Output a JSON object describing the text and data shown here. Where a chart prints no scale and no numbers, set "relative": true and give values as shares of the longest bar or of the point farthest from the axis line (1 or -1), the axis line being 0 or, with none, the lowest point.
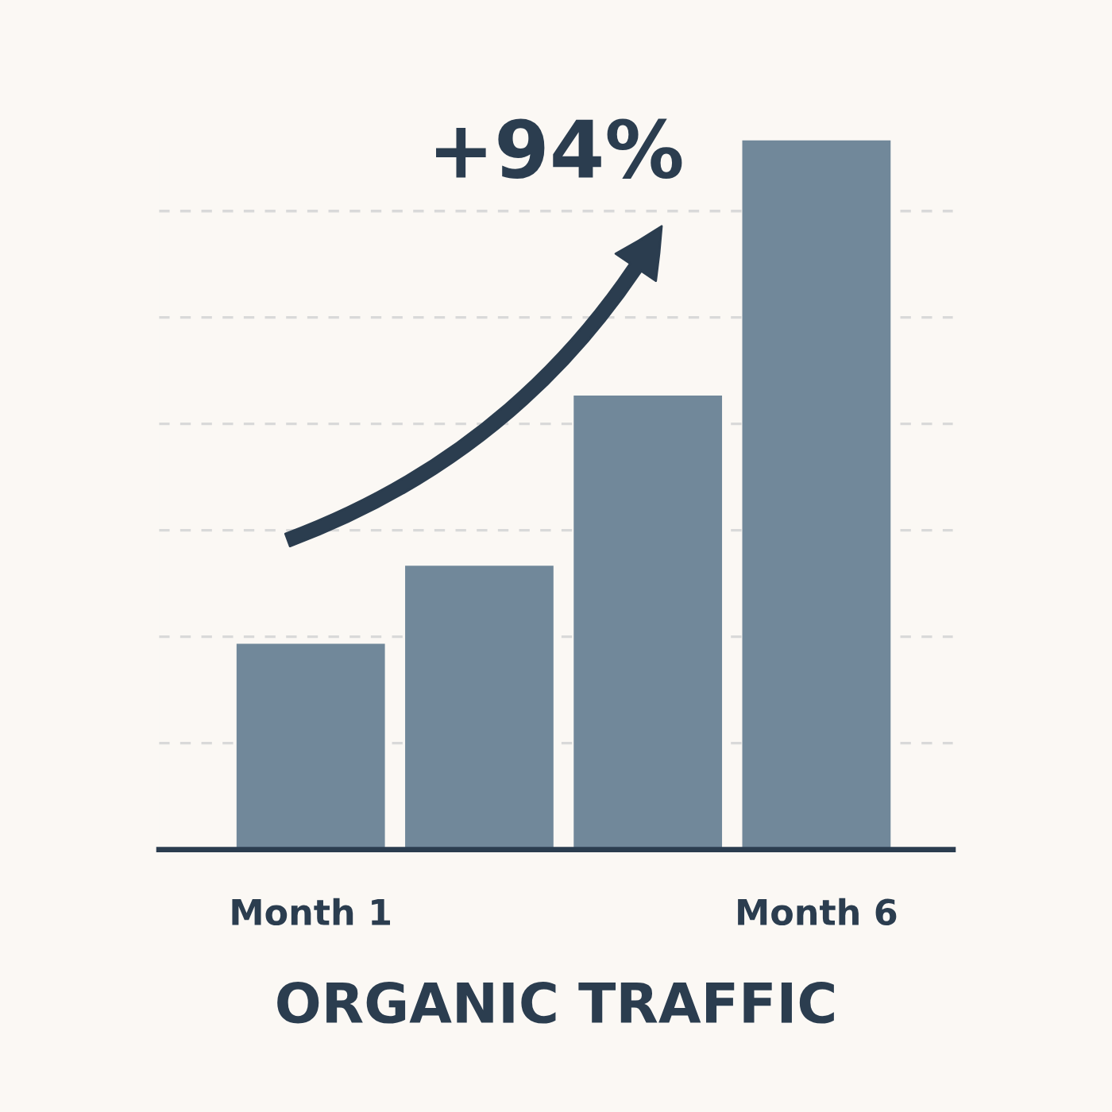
{
  "chart_data": {
    "type": "bar",
    "relative": true,
    "categories": [
      "Month 1",
      null,
      null,
      "Month 6"
    ],
    "values": [
      0.29,
      0.4,
      0.64,
      1
    ],
    "color": "#71889a",
    "xlabel": "ORGANIC TRAFFIC",
    "annotations": [
      "+94%"
    ],
    "grid": "y"
  }
}
